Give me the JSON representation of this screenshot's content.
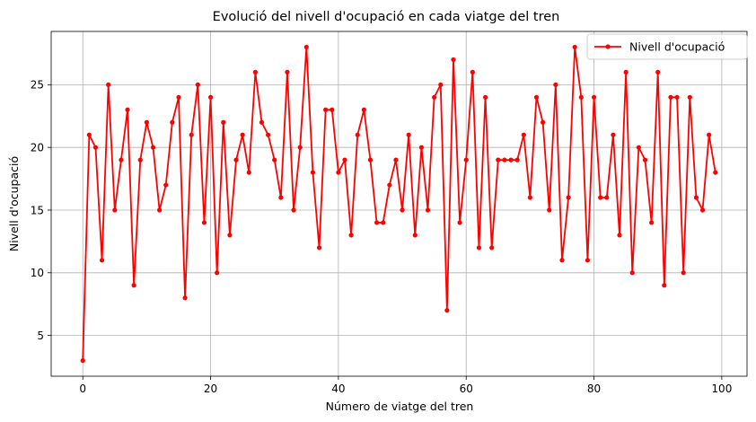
{
  "chart_data": {
    "type": "line",
    "title": "Evolució del nivell d'ocupació en cada viatge del tren",
    "xlabel": "Número de viatge del tren",
    "ylabel": "Nivell d'ocupació",
    "xlim": [
      -4.95,
      103.95
    ],
    "ylim": [
      1.75,
      29.25
    ],
    "xticks": [
      0,
      20,
      40,
      60,
      80,
      100
    ],
    "yticks": [
      5,
      10,
      15,
      20,
      25
    ],
    "xtick_labels": [
      "0",
      "20",
      "40",
      "60",
      "80",
      "100"
    ],
    "ytick_labels": [
      "5",
      "10",
      "15",
      "20",
      "25"
    ],
    "grid": true,
    "legend_position": "top-right",
    "colors": {
      "series": "#ff0000",
      "grid": "#b0b0b0",
      "axis": "#000000"
    },
    "series": [
      {
        "name": "Nivell d'ocupació",
        "marker": "circle",
        "x": [
          0,
          1,
          2,
          3,
          4,
          5,
          6,
          7,
          8,
          9,
          10,
          11,
          12,
          13,
          14,
          15,
          16,
          17,
          18,
          19,
          20,
          21,
          22,
          23,
          24,
          25,
          26,
          27,
          28,
          29,
          30,
          31,
          32,
          33,
          34,
          35,
          36,
          37,
          38,
          39,
          40,
          41,
          42,
          43,
          44,
          45,
          46,
          47,
          48,
          49,
          50,
          51,
          52,
          53,
          54,
          55,
          56,
          57,
          58,
          59,
          60,
          61,
          62,
          63,
          64,
          65,
          66,
          67,
          68,
          69,
          70,
          71,
          72,
          73,
          74,
          75,
          76,
          77,
          78,
          79,
          80,
          81,
          82,
          83,
          84,
          85,
          86,
          87,
          88,
          89,
          90,
          91,
          92,
          93,
          94,
          95,
          96,
          97,
          98,
          99
        ],
        "values": [
          3,
          21,
          20,
          11,
          25,
          15,
          19,
          23,
          9,
          19,
          22,
          20,
          15,
          17,
          22,
          24,
          8,
          21,
          25,
          14,
          24,
          10,
          22,
          13,
          19,
          21,
          18,
          26,
          22,
          21,
          19,
          16,
          26,
          15,
          20,
          28,
          18,
          12,
          23,
          23,
          18,
          19,
          13,
          21,
          23,
          19,
          14,
          14,
          17,
          19,
          15,
          21,
          13,
          20,
          15,
          24,
          25,
          7,
          27,
          14,
          19,
          26,
          12,
          24,
          12,
          19,
          19,
          19,
          19,
          21,
          16,
          24,
          22,
          15,
          25,
          11,
          16,
          28,
          24,
          11,
          24,
          16,
          16,
          21,
          13,
          26,
          10,
          20,
          19,
          14,
          26,
          9,
          24,
          24,
          10,
          24,
          16,
          15,
          21,
          18
        ]
      }
    ]
  }
}
